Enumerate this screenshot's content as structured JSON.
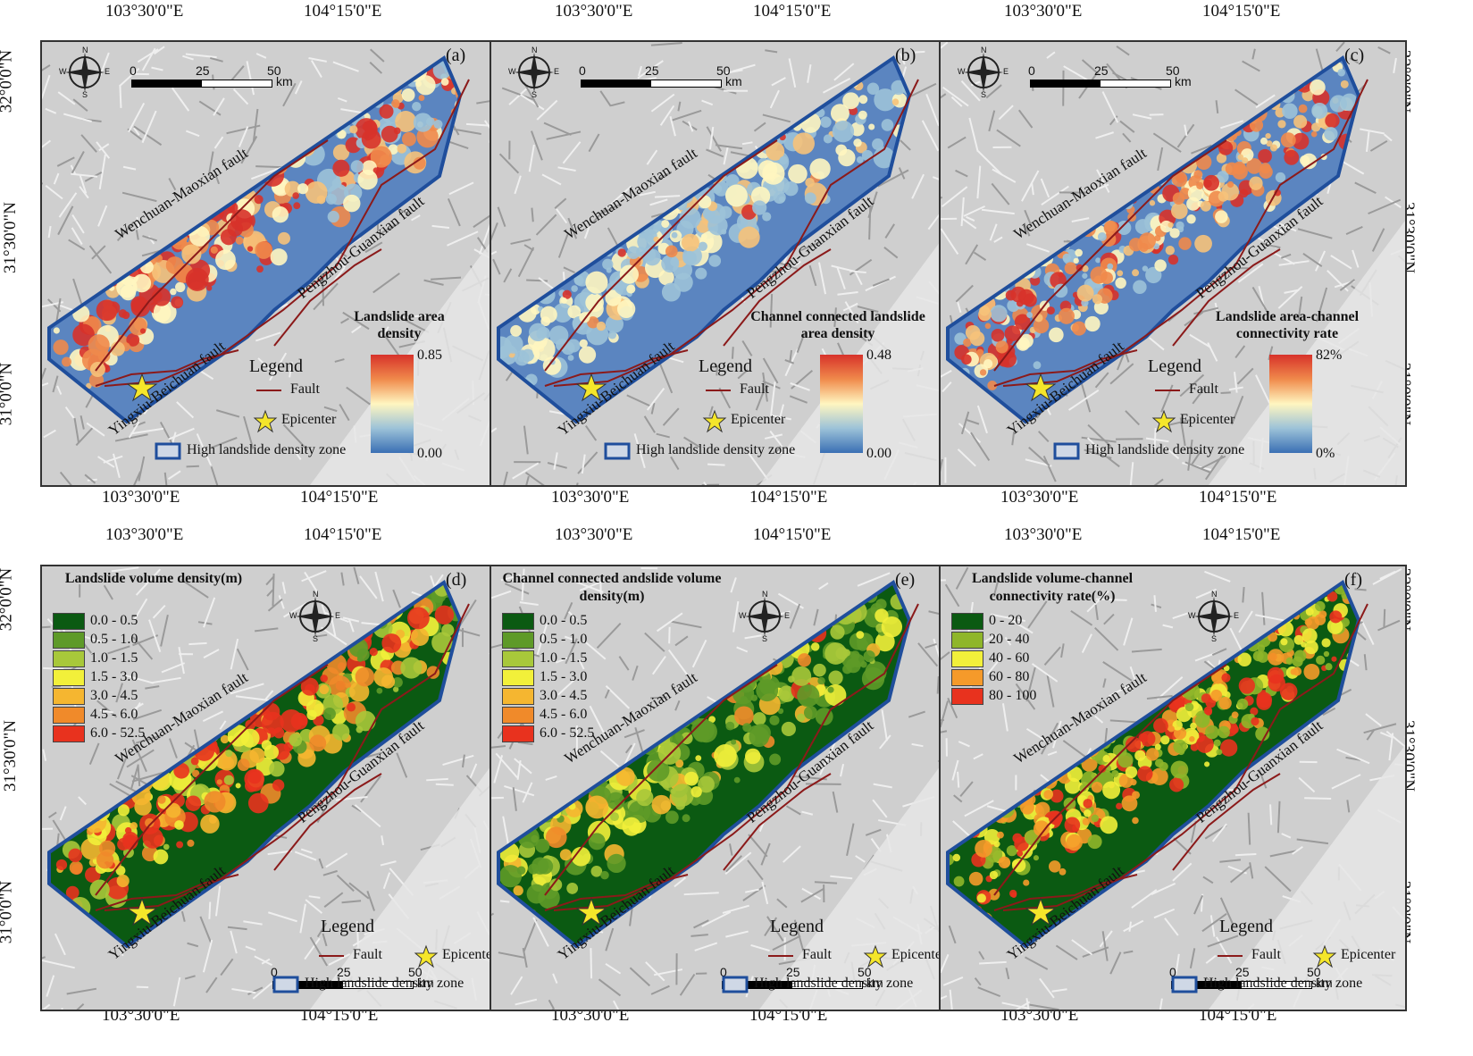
{
  "coords": {
    "lon_1": "103°30'0\"E",
    "lon_2": "104°15'0\"E",
    "lat_1": "32°0'0\"N",
    "lat_2": "31°30'0\"N",
    "lat_3": "31°0'0\"N"
  },
  "faults": {
    "wenchuan": "Wenchuan-Maoxian fault",
    "pengzhou": "Pengzhou-Guanxian fault",
    "yingxiu": "Yingxiu-Beichuan fault"
  },
  "legend": {
    "title": "Legend",
    "fault": "Fault",
    "epicenter": "Epicenter",
    "zone": "High landslide density zone"
  },
  "scale": {
    "s0": "0",
    "s1": "25",
    "s2": "50",
    "unit": "km"
  },
  "compass": {
    "n": "N",
    "s": "S",
    "w": "W",
    "e": "E"
  },
  "panels": [
    {
      "label": "(a)",
      "ramp_title": "Landslide area density",
      "ramp_max": "0.85",
      "ramp_min": "0.00"
    },
    {
      "label": "(b)",
      "ramp_title": "Channel connected landslide area density",
      "ramp_max": "0.48",
      "ramp_min": "0.00"
    },
    {
      "label": "(c)",
      "ramp_title": "Landslide area-channel connectivity rate",
      "ramp_max": "82%",
      "ramp_min": "0%"
    },
    {
      "label": "(d)",
      "cls_title": "Landslide volume density(m)",
      "classes": [
        "0.0 - 0.5",
        "0.5 - 1.0",
        "1.0 - 1.5",
        "1.5 - 3.0",
        "3.0 - 4.5",
        "4.5 - 6.0",
        "6.0 - 52.5"
      ]
    },
    {
      "label": "(e)",
      "cls_title": "Channel connected andslide volume density(m)",
      "classes": [
        "0.0 - 0.5",
        "0.5 - 1.0",
        "1.0 - 1.5",
        "1.5 - 3.0",
        "3.0 - 4.5",
        "4.5 - 6.0",
        "6.0 - 52.5"
      ]
    },
    {
      "label": "(f)",
      "cls_title": "Landslide volume-channel connectivity rate(%)",
      "classes": [
        "0 - 20",
        "20 - 40",
        "40 - 60",
        "60 - 80",
        "80 - 100"
      ]
    }
  ],
  "colors": {
    "fault": "#8b1a1a",
    "zone_border": "#1f4e9c",
    "epicenter": "#f5e62a",
    "class_7": [
      "#0b5a12",
      "#5e9a28",
      "#a8c83a",
      "#f2f03a",
      "#f5b630",
      "#f08a2a",
      "#e8321e"
    ],
    "class_5": [
      "#0b5a12",
      "#8fb62a",
      "#f2f03a",
      "#f59a2a",
      "#e8321e"
    ]
  }
}
